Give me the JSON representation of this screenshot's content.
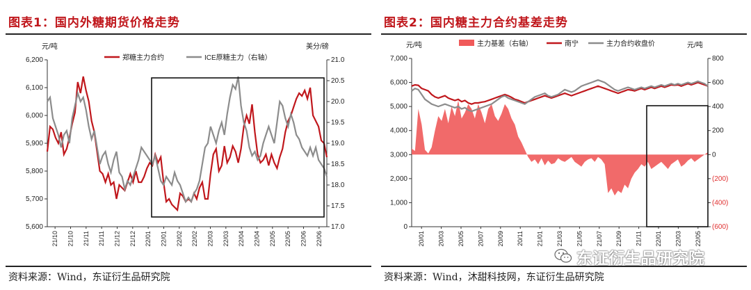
{
  "panels": [
    {
      "title": "图表1：国内外糖期货价格走势",
      "source": "资料来源：Wind，东证衍生品研究院"
    },
    {
      "title": "图表2：国内糖主力合约基差走势",
      "source": "资料来源：Wind，沐甜科技网，东证衍生品研究院"
    }
  ],
  "watermark": {
    "text": "东证衍生品研究院",
    "icon": "wechat-icon"
  },
  "chart_data": [
    {
      "type": "line",
      "y_unit_left": "元/吨",
      "y_unit_right": "美分/磅",
      "ylim": [
        5600,
        6200
      ],
      "y2lim": [
        17.0,
        21.0
      ],
      "y_ticks": [
        "5,600",
        "5,700",
        "5,800",
        "5,900",
        "6,000",
        "6,100",
        "6,200"
      ],
      "y2_ticks": [
        "17.0",
        "17.5",
        "18.0",
        "18.5",
        "19.0",
        "19.5",
        "20.0",
        "20.5",
        "21.0"
      ],
      "x_ticks": [
        "21/10",
        "21/10",
        "21/11",
        "21/11",
        "21/12",
        "21/12",
        "22/01",
        "22/01",
        "22/02",
        "22/02",
        "22/03",
        "22/03",
        "22/04",
        "22/04",
        "22/05",
        "22/05",
        "22/06",
        "22/06"
      ],
      "grid": false,
      "legend_position": "top",
      "highlight_box": true,
      "series": [
        {
          "name": "郑糖主力合约",
          "axis": "left",
          "color": "#c0171c",
          "values": [
            5870,
            5960,
            5950,
            5920,
            5900,
            5940,
            5860,
            5880,
            5920,
            5970,
            6010,
            6120,
            6080,
            6140,
            6090,
            6050,
            5980,
            5940,
            5870,
            5800,
            5790,
            5760,
            5790,
            5750,
            5760,
            5700,
            5750,
            5740,
            5730,
            5760,
            5790,
            5760,
            5800,
            5760,
            5760,
            5780,
            5810,
            5830,
            5820,
            5860,
            5830,
            5850,
            5760,
            5690,
            5700,
            5680,
            5670,
            5660,
            5720,
            5710,
            5690,
            5700,
            5690,
            5720,
            5700,
            5740,
            5760,
            5700,
            5700,
            5790,
            5860,
            5880,
            5800,
            5820,
            5890,
            5830,
            5850,
            5890,
            5870,
            5830,
            5880,
            5960,
            6000,
            5970,
            6040,
            5940,
            5860,
            5830,
            5840,
            5860,
            5820,
            5860,
            5830,
            5810,
            5850,
            5880,
            5940,
            5980,
            6000,
            6030,
            6060,
            6080,
            6070,
            6090,
            6060,
            6100,
            6000,
            5980,
            5960,
            5910,
            5900,
            5850
          ]
        },
        {
          "name": "ICE原糖主力（右轴）",
          "axis": "right",
          "color": "#8c8c8c",
          "values": [
            20.0,
            20.1,
            19.6,
            19.4,
            19.2,
            18.9,
            19.2,
            19.3,
            19.0,
            19.6,
            19.9,
            20.2,
            20.0,
            20.1,
            19.8,
            19.4,
            19.1,
            19.3,
            18.9,
            18.5,
            18.7,
            18.8,
            18.5,
            18.3,
            18.6,
            18.8,
            18.3,
            18.2,
            17.9,
            18.1,
            18.0,
            18.2,
            18.4,
            18.6,
            18.9,
            18.8,
            18.7,
            18.6,
            18.5,
            18.7,
            18.4,
            18.1,
            18.0,
            18.2,
            18.1,
            18.0,
            18.3,
            18.1,
            18.0,
            17.8,
            17.6,
            17.7,
            17.6,
            17.8,
            17.9,
            18.1,
            18.5,
            18.9,
            19.0,
            19.4,
            19.2,
            19.0,
            19.3,
            19.5,
            19.2,
            19.7,
            20.1,
            20.4,
            20.3,
            20.6,
            19.9,
            19.5,
            19.3,
            18.9,
            18.7,
            18.8,
            18.6,
            18.7,
            19.0,
            19.2,
            19.4,
            19.2,
            19.0,
            19.5,
            20.0,
            19.9,
            19.6,
            19.4,
            19.7,
            19.5,
            19.2,
            19.1,
            18.9,
            18.8,
            18.7,
            18.9,
            18.7,
            18.9,
            18.6,
            18.5,
            18.4,
            18.2
          ]
        }
      ]
    },
    {
      "type": "line",
      "y_unit_left": "元/吨",
      "y_unit_right": "元/吨",
      "ylim": [
        0,
        7000
      ],
      "y2lim": [
        -600,
        800
      ],
      "y_ticks": [
        "0",
        "1,000",
        "2,000",
        "3,000",
        "4,000",
        "5,000",
        "6,000",
        "7,000"
      ],
      "y2_ticks": [
        "(600)",
        "(400)",
        "(200)",
        "0",
        "200",
        "400",
        "600",
        "800"
      ],
      "x_ticks": [
        "20/01",
        "20/03",
        "20/05",
        "20/07",
        "20/09",
        "20/11",
        "21/01",
        "21/03",
        "21/05",
        "21/07",
        "21/09",
        "21/11",
        "22/01",
        "22/03",
        "22/05"
      ],
      "grid": false,
      "legend_position": "top",
      "highlight_box": true,
      "series": [
        {
          "name": "主力基差（右轴）",
          "axis": "right",
          "type": "area",
          "color": "#f05a5a",
          "values": [
            50,
            30,
            380,
            250,
            40,
            10,
            60,
            200,
            320,
            280,
            380,
            260,
            400,
            320,
            450,
            300,
            350,
            420,
            380,
            300,
            420,
            350,
            260,
            380,
            420,
            320,
            280,
            340,
            420,
            380,
            300,
            250,
            150,
            100,
            40,
            -20,
            -60,
            -40,
            -80,
            -30,
            -90,
            -50,
            -80,
            -70,
            -30,
            -50,
            -60,
            -40,
            -20,
            -60,
            -80,
            -100,
            -60,
            -40,
            -30,
            -60,
            -20,
            -40,
            -80,
            -320,
            -280,
            -340,
            -300,
            -320,
            -250,
            -280,
            -200,
            -150,
            -120,
            -80,
            -100,
            -60,
            -120,
            -100,
            -80,
            -60,
            -90,
            -120,
            -80,
            -60,
            -40,
            -100,
            -80,
            -50,
            -30,
            -60,
            -40,
            -20,
            0,
            20
          ]
        },
        {
          "name": "南宁",
          "axis": "left",
          "color": "#c0171c",
          "values": [
            5850,
            5900,
            5880,
            5750,
            5700,
            5650,
            5500,
            5400,
            5350,
            5400,
            5450,
            5350,
            5300,
            5250,
            5300,
            5200,
            5250,
            5150,
            5100,
            5150,
            5150,
            5180,
            5200,
            5250,
            5300,
            5350,
            5400,
            5450,
            5500,
            5450,
            5380,
            5300,
            5260,
            5200,
            5150,
            5200,
            5250,
            5300,
            5350,
            5400,
            5450,
            5400,
            5350,
            5400,
            5450,
            5500,
            5550,
            5500,
            5450,
            5500,
            5550,
            5600,
            5650,
            5700,
            5750,
            5800,
            5850,
            5800,
            5750,
            5700,
            5650,
            5600,
            5550,
            5600,
            5650,
            5700,
            5680,
            5650,
            5700,
            5750,
            5700,
            5750,
            5800,
            5750,
            5800,
            5850,
            5800,
            5850,
            5900,
            5880,
            5900,
            5850,
            5900,
            5950,
            5900,
            5950,
            6000,
            5950,
            5900,
            5850
          ]
        },
        {
          "name": "主力合约收盘价",
          "axis": "left",
          "color": "#8c8c8c",
          "values": [
            5650,
            5750,
            5700,
            5500,
            5300,
            5200,
            5100,
            5050,
            5000,
            5050,
            5100,
            5050,
            5000,
            4950,
            5000,
            4900,
            4950,
            4850,
            4800,
            4850,
            4900,
            4950,
            5000,
            5050,
            5100,
            5200,
            5300,
            5400,
            5450,
            5350,
            5300,
            5250,
            5200,
            5150,
            5100,
            5200,
            5300,
            5400,
            5450,
            5500,
            5550,
            5450,
            5400,
            5450,
            5500,
            5600,
            5700,
            5650,
            5600,
            5650,
            5750,
            5850,
            5900,
            5950,
            6000,
            6050,
            6100,
            6050,
            6000,
            5900,
            5800,
            5700,
            5650,
            5700,
            5750,
            5800,
            5750,
            5700,
            5750,
            5800,
            5750,
            5800,
            5850,
            5800,
            5850,
            5900,
            5850,
            5900,
            5950,
            5900,
            5950,
            5900,
            5950,
            6000,
            5950,
            6000,
            6050,
            6000,
            5950,
            5850
          ]
        }
      ]
    }
  ]
}
